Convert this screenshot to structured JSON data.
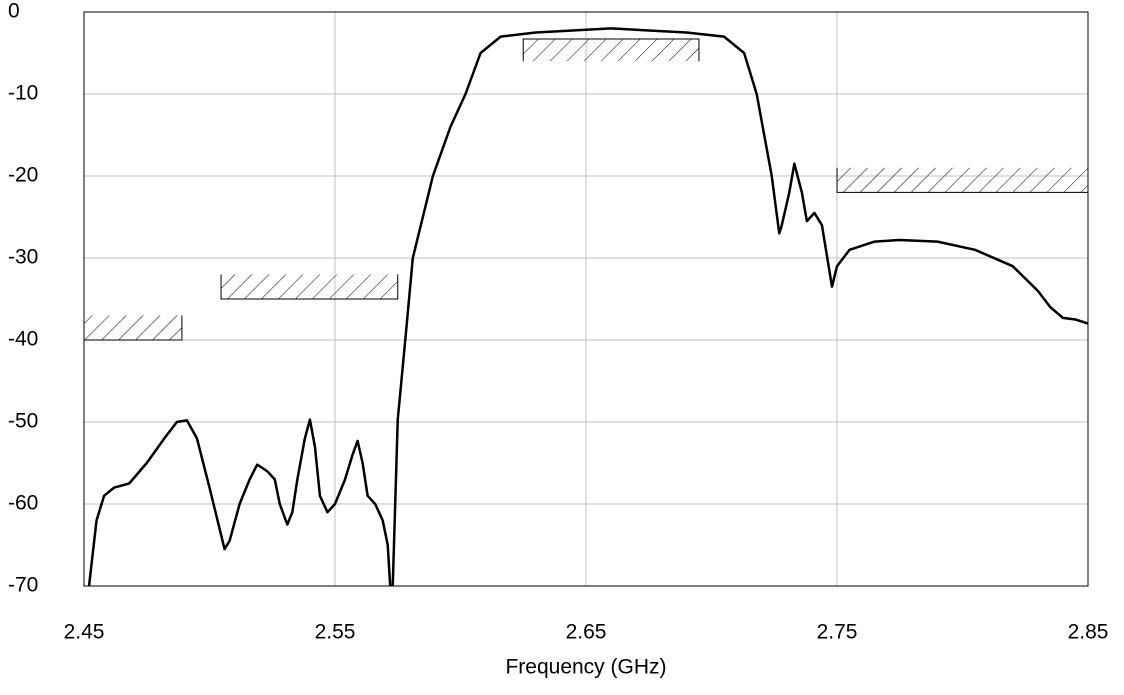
{
  "chart_data": {
    "type": "line",
    "xlabel": "Frequency (GHz)",
    "xlim": [
      2.45,
      2.85
    ],
    "xticks": [
      2.45,
      2.55,
      2.65,
      2.75,
      2.85
    ],
    "ylim": [
      -70,
      0
    ],
    "yticks": [
      0,
      -10,
      -20,
      -30,
      -40,
      -50,
      -60,
      -70
    ],
    "grid": true,
    "x": [
      2.452,
      2.455,
      2.458,
      2.462,
      2.468,
      2.475,
      2.482,
      2.487,
      2.491,
      2.495,
      2.5,
      2.504,
      2.506,
      2.508,
      2.512,
      2.516,
      2.519,
      2.523,
      2.526,
      2.528,
      2.531,
      2.533,
      2.535,
      2.538,
      2.54,
      2.542,
      2.544,
      2.547,
      2.55,
      2.554,
      2.557,
      2.559,
      2.561,
      2.563,
      2.566,
      2.569,
      2.571,
      2.572,
      2.573,
      2.575,
      2.578,
      2.581,
      2.589,
      2.596,
      2.602,
      2.608,
      2.616,
      2.63,
      2.66,
      2.69,
      2.705,
      2.713,
      2.718,
      2.724,
      2.727,
      2.728,
      2.731,
      2.733,
      2.736,
      2.738,
      2.741,
      2.744,
      2.748,
      2.75,
      2.755,
      2.765,
      2.775,
      2.79,
      2.805,
      2.82,
      2.83,
      2.835,
      2.84,
      2.845,
      2.85
    ],
    "series": [
      {
        "color": "#000000",
        "values": [
          -70,
          -62,
          -59,
          -58,
          -57.5,
          -55,
          -52,
          -50,
          -49.8,
          -52,
          -58,
          -63,
          -65.5,
          -64.5,
          -60,
          -57,
          -55.2,
          -56,
          -57,
          -60,
          -62.5,
          -61,
          -57,
          -52,
          -49.7,
          -53,
          -59,
          -61,
          -60,
          -57,
          -54,
          -52.3,
          -55,
          -59,
          -60,
          -62,
          -65,
          -70,
          -70,
          -49.7,
          -40,
          -30,
          -20,
          -14,
          -10,
          -5,
          -3,
          -2.5,
          -2,
          -2.5,
          -3,
          -5,
          -10,
          -20,
          -27,
          -26,
          -22,
          -18.5,
          -22,
          -25.5,
          -24.5,
          -26,
          -33.5,
          -31,
          -29,
          -28,
          -27.8,
          -28,
          -29,
          -31,
          -34,
          -36,
          -37.3,
          -37.5,
          -38
        ]
      }
    ],
    "masks": [
      {
        "x": [
          2.45,
          2.489
        ],
        "limit": -40,
        "hatch": -37
      },
      {
        "x": [
          2.5046,
          2.575
        ],
        "limit": -35,
        "hatch": -32
      },
      {
        "x": [
          2.625,
          2.695
        ],
        "limit": -3.3,
        "hatch": -6
      },
      {
        "x": [
          2.75,
          2.85
        ],
        "limit": -22,
        "hatch": -19
      }
    ]
  }
}
